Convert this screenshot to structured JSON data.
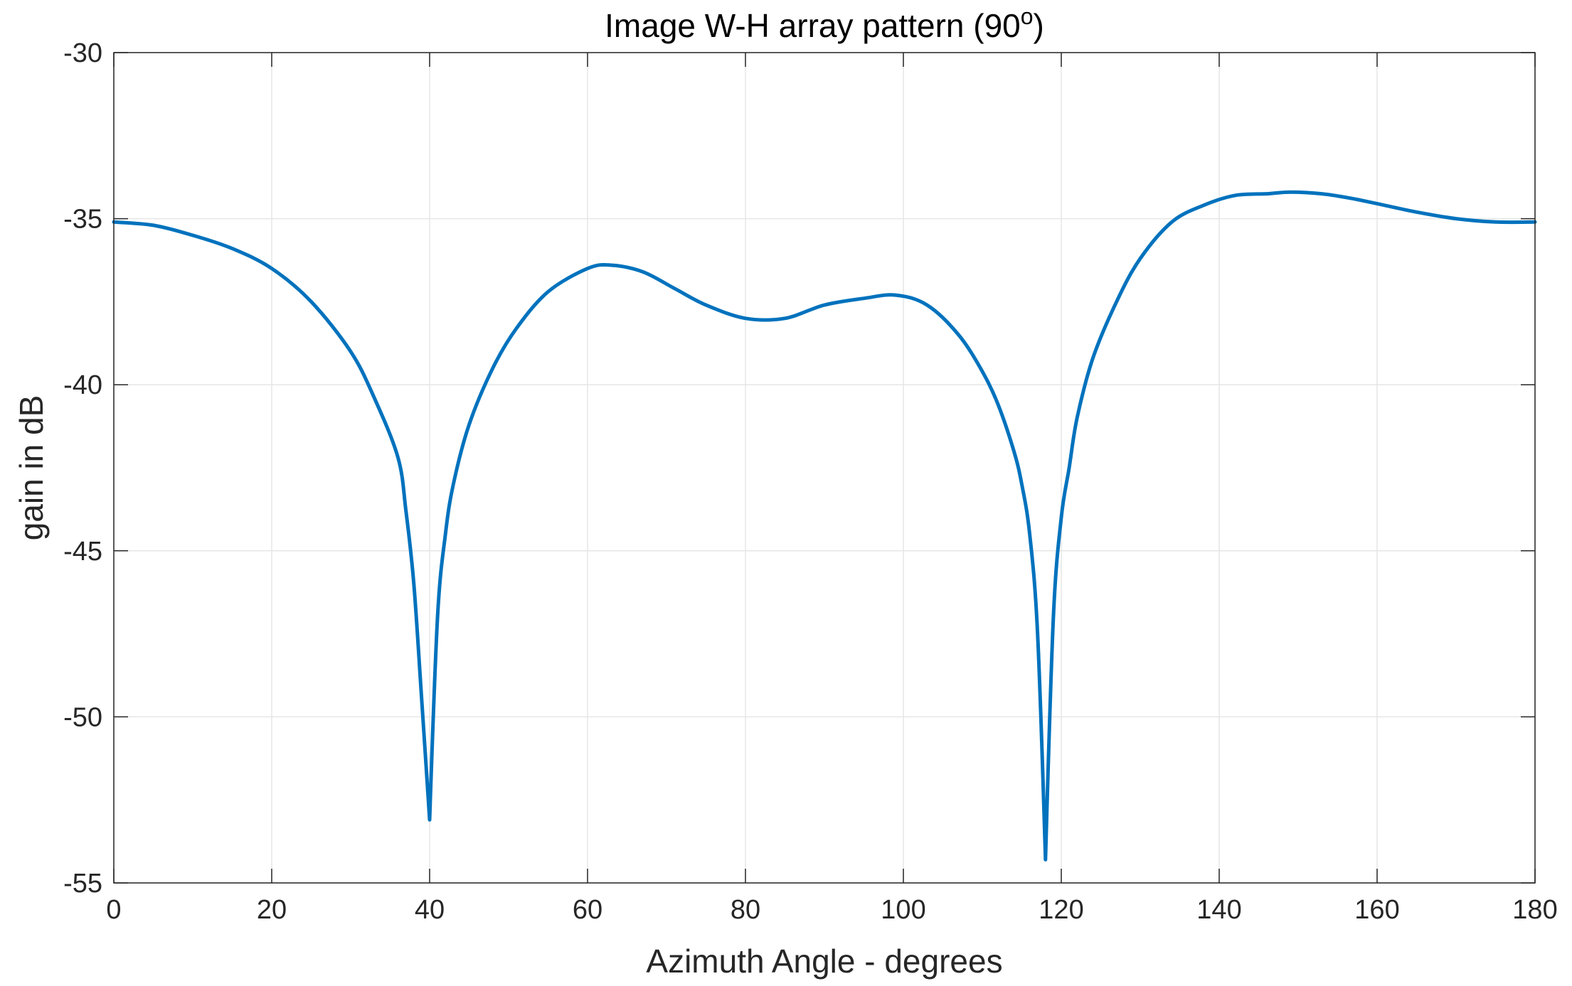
{
  "chart_data": {
    "type": "line",
    "title": "Image W-H array pattern (90",
    "title_superscript": "o",
    "title_suffix": ")",
    "xlabel": "Azimuth Angle - degrees",
    "ylabel": "gain in dB",
    "xlim": [
      0,
      180
    ],
    "ylim": [
      -55,
      -30
    ],
    "xticks": [
      0,
      20,
      40,
      60,
      80,
      100,
      120,
      140,
      160,
      180
    ],
    "yticks": [
      -55,
      -50,
      -45,
      -40,
      -35,
      -30
    ],
    "grid": true,
    "line_color": "#0072bd",
    "series": [
      {
        "x": [
          0,
          5,
          10,
          15,
          20,
          25,
          30,
          33,
          36,
          37,
          38,
          39,
          40,
          41,
          42,
          43,
          45,
          48,
          51,
          55,
          60,
          63,
          67,
          71,
          75,
          80,
          85,
          90,
          95,
          99,
          103,
          107,
          110,
          112,
          114,
          115,
          116,
          117,
          118,
          119,
          120,
          121,
          122,
          124,
          127,
          130,
          134,
          138,
          142,
          146,
          149,
          153,
          157,
          161,
          165,
          170,
          175,
          180
        ],
        "y": [
          -35.1,
          -35.2,
          -35.5,
          -35.9,
          -36.5,
          -37.5,
          -39.0,
          -40.4,
          -42.2,
          -43.8,
          -46.0,
          -49.5,
          -53.1,
          -47.0,
          -44.5,
          -43.0,
          -41.2,
          -39.5,
          -38.3,
          -37.2,
          -36.5,
          -36.4,
          -36.6,
          -37.1,
          -37.6,
          -38.0,
          -38.0,
          -37.6,
          -37.4,
          -37.3,
          -37.6,
          -38.5,
          -39.6,
          -40.6,
          -42.0,
          -43.0,
          -44.5,
          -47.5,
          -54.3,
          -47.0,
          -44.0,
          -42.5,
          -41.0,
          -39.2,
          -37.5,
          -36.2,
          -35.1,
          -34.6,
          -34.3,
          -34.25,
          -34.2,
          -34.25,
          -34.4,
          -34.6,
          -34.8,
          -35.0,
          -35.1,
          -35.1
        ]
      }
    ]
  }
}
